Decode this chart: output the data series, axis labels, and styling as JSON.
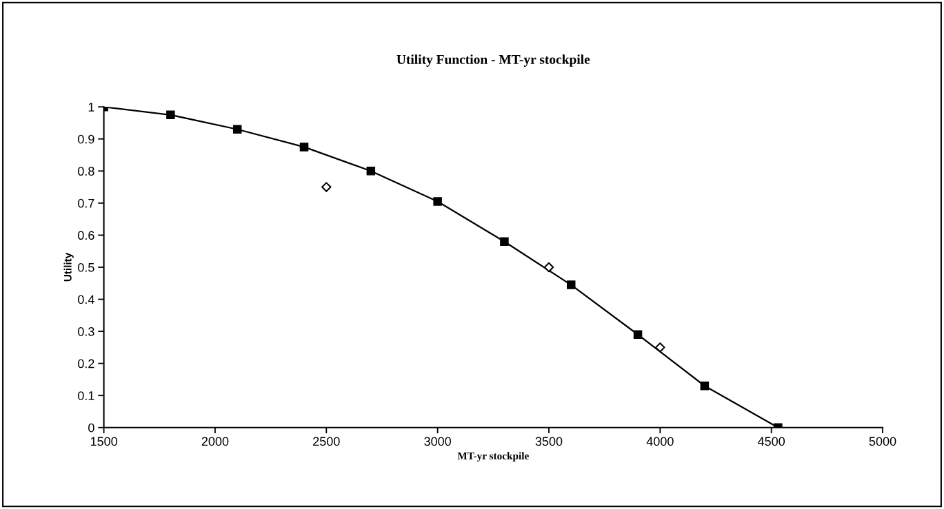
{
  "chart_data": {
    "type": "line",
    "title": "Utility Function - MT-yr stockpile",
    "xlabel": "MT-yr stockpile",
    "ylabel": "Utility",
    "xlim": [
      1500,
      5000
    ],
    "xticks": [
      1500,
      2000,
      2500,
      3000,
      3500,
      4000,
      4500,
      5000
    ],
    "ylim": [
      0,
      1
    ],
    "yticks": [
      0,
      0.1,
      0.2,
      0.3,
      0.4,
      0.5,
      0.6,
      0.7,
      0.8,
      0.9,
      1
    ],
    "grid": false,
    "legend": false,
    "series": [
      {
        "color": "#000000",
        "marker": "square",
        "line_style": "solid",
        "x": [
          1500,
          1800,
          2100,
          2400,
          2700,
          3000,
          3300,
          3600,
          3900,
          4200,
          4530
        ],
        "values": [
          1.0,
          0.975,
          0.93,
          0.875,
          0.8,
          0.705,
          0.58,
          0.445,
          0.29,
          0.13,
          0
        ]
      },
      {
        "type": "scatter",
        "color": "#000000",
        "marker": "diamond",
        "x": [
          2500,
          3500,
          4000
        ],
        "values": [
          0.75,
          0.5,
          0.25
        ]
      }
    ]
  }
}
